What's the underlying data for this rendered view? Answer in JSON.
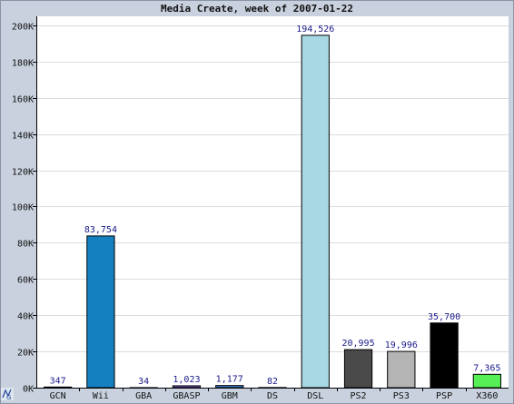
{
  "chart_data": {
    "type": "bar",
    "title": "Media Create, week of 2007-01-22",
    "categories": [
      "GCN",
      "Wii",
      "GBA",
      "GBASP",
      "GBM",
      "DS",
      "DSL",
      "PS2",
      "PS3",
      "PSP",
      "X360"
    ],
    "values": [
      347,
      83754,
      34,
      1023,
      1177,
      82,
      194526,
      20995,
      19996,
      35700,
      7365
    ],
    "data_labels": [
      "347",
      "83,754",
      "34",
      "1,023",
      "1,177",
      "82",
      "194,526",
      "20,995",
      "19,996",
      "35,700",
      "7,365"
    ],
    "colors": [
      "#111111",
      "#1580c0",
      "#6a4fb8",
      "#6a4fb8",
      "#3a7ecf",
      "#e4e4e4",
      "#a8d8e4",
      "#4a4a4a",
      "#b4b4b4",
      "#000000",
      "#55ee55"
    ],
    "ylim": [
      0,
      205000
    ],
    "yticks": [
      0,
      20000,
      40000,
      60000,
      80000,
      100000,
      120000,
      140000,
      160000,
      180000,
      200000
    ],
    "ytick_labels": [
      "0K",
      "20K",
      "40K",
      "60K",
      "80K",
      "100K",
      "120K",
      "140K",
      "160K",
      "180K",
      "200K"
    ],
    "xlabel": "",
    "ylabel": "",
    "grid": true,
    "legend": "none",
    "background": "#ffffff",
    "frame_color": "#c9d1de",
    "label_color": "#1a1a8c",
    "logo_icon": "jpgraph-logo-icon"
  }
}
